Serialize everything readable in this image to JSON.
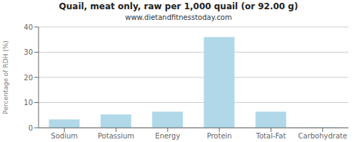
{
  "chart_data": {
    "type": "bar",
    "title": "Quail, meat only, raw per 1,000 quail (or 92.00 g)",
    "subtitle": "www.dietandfitnesstoday.com",
    "categories": [
      "Sodium",
      "Potassium",
      "Energy",
      "Protein",
      "Total-Fat",
      "Carbohydrate"
    ],
    "values": [
      3.3,
      5.3,
      6.4,
      36.0,
      6.4,
      0.2
    ],
    "color": "#b0d8e8",
    "ylabel": "Percentage of RDH (%)",
    "ylim": [
      0,
      40
    ],
    "yticks": [
      0,
      10,
      20,
      30,
      40
    ],
    "grid": true
  }
}
